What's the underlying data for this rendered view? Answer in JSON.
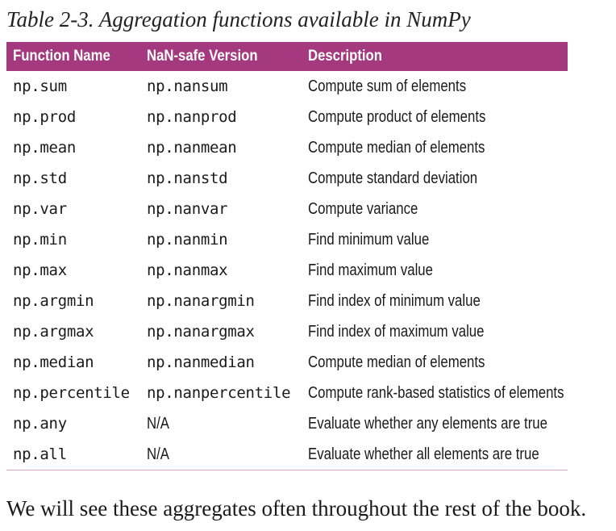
{
  "caption": "Table 2-3. Aggregation functions available in NumPy",
  "table": {
    "headers": [
      "Function Name",
      "NaN-safe Version",
      "Description"
    ],
    "rows": [
      [
        "np.sum",
        "np.nansum",
        "Compute sum of elements"
      ],
      [
        "np.prod",
        "np.nanprod",
        "Compute product of elements"
      ],
      [
        "np.mean",
        "np.nanmean",
        "Compute median of elements"
      ],
      [
        "np.std",
        "np.nanstd",
        "Compute standard deviation"
      ],
      [
        "np.var",
        "np.nanvar",
        "Compute variance"
      ],
      [
        "np.min",
        "np.nanmin",
        "Find minimum value"
      ],
      [
        "np.max",
        "np.nanmax",
        "Find maximum value"
      ],
      [
        "np.argmin",
        "np.nanargmin",
        "Find index of minimum value"
      ],
      [
        "np.argmax",
        "np.nanargmax",
        "Find index of maximum value"
      ],
      [
        "np.median",
        "np.nanmedian",
        "Compute median of elements"
      ],
      [
        "np.percentile",
        "np.nanpercentile",
        "Compute rank-based statistics of elements"
      ],
      [
        "np.any",
        "N/A",
        "Evaluate whether any elements are true"
      ],
      [
        "np.all",
        "N/A",
        "Evaluate whether all elements are true"
      ]
    ]
  },
  "body_text": "We will see these aggregates often throughout the rest of the book.",
  "colors": {
    "header_bg": "#a4397f",
    "header_text": "#ffffff",
    "rule": "#d9a6c6"
  }
}
